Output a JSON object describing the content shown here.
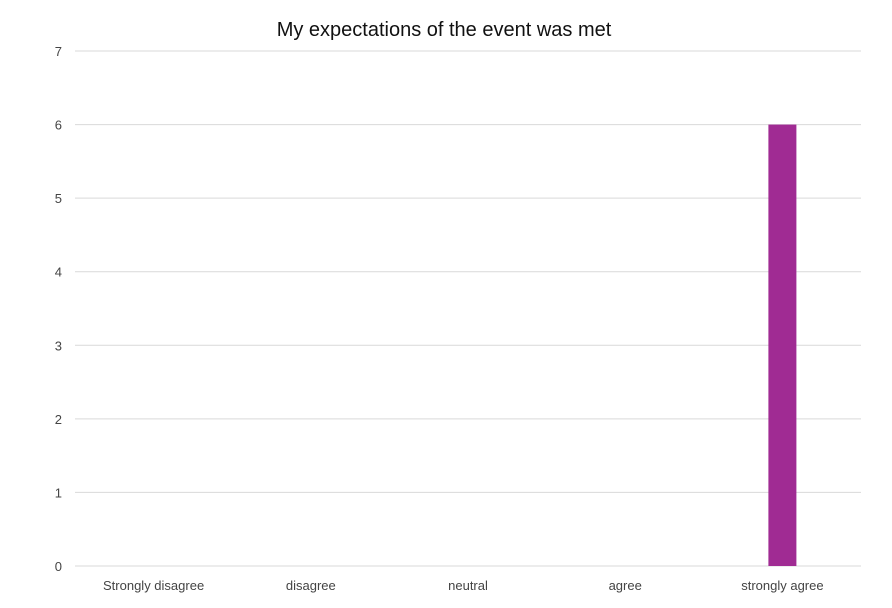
{
  "chart_data": {
    "type": "bar",
    "title": "My expectations of the event was met",
    "categories": [
      "Strongly disagree",
      "disagree",
      "neutral",
      "agree",
      "strongly agree"
    ],
    "values": [
      0,
      0,
      0,
      0,
      6
    ],
    "ylim": [
      0,
      7
    ],
    "yticks": [
      "0",
      "1",
      "2",
      "3",
      "4",
      "5",
      "6",
      "7"
    ],
    "grid": true,
    "bar_color": "#a02b93"
  }
}
